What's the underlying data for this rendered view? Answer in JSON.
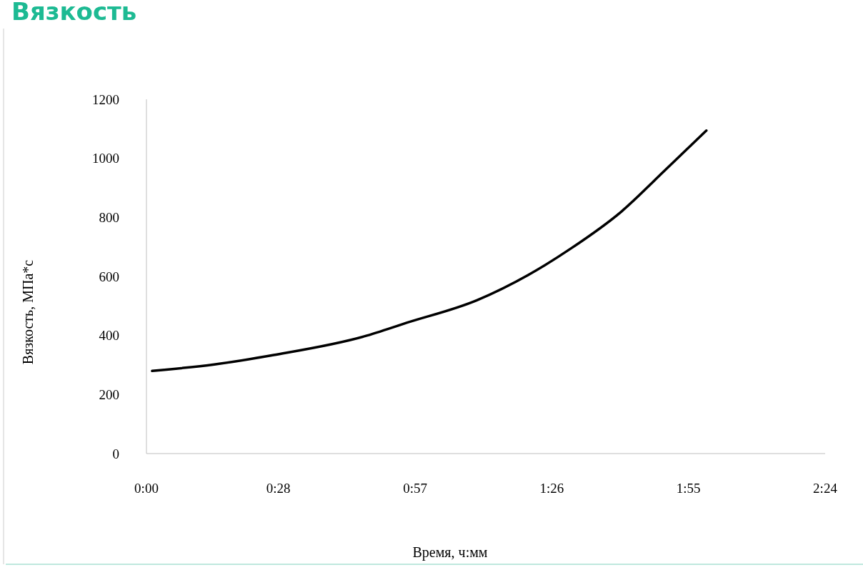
{
  "chart_data": {
    "type": "line",
    "title": "Вязкость",
    "xlabel": "Время, ч:мм",
    "ylabel": "Вязкость, МПа*с",
    "x": [
      0.02,
      0.24,
      0.45,
      0.77,
      0.92,
      1.17,
      1.35,
      1.5,
      1.68,
      1.83,
      1.98
    ],
    "series": [
      {
        "color": "#000000",
        "values": [
          280,
          302,
          334,
          397,
          443,
          520,
          605,
          694,
          820,
          956,
          1094
        ]
      }
    ],
    "xlim": [
      0,
      2.4
    ],
    "xticks": [
      {
        "value": 0,
        "label": "0:00"
      },
      {
        "value": 0.4667,
        "label": "0:28"
      },
      {
        "value": 0.95,
        "label": "0:57"
      },
      {
        "value": 1.4333,
        "label": "1:26"
      },
      {
        "value": 1.9167,
        "label": "1:55"
      },
      {
        "value": 2.4,
        "label": "2:24"
      }
    ],
    "ylim": [
      0,
      1200
    ],
    "yticks": [
      0,
      200,
      400,
      600,
      800,
      1000,
      1200
    ],
    "grid": false,
    "marker": "none",
    "line_style": "solid"
  }
}
